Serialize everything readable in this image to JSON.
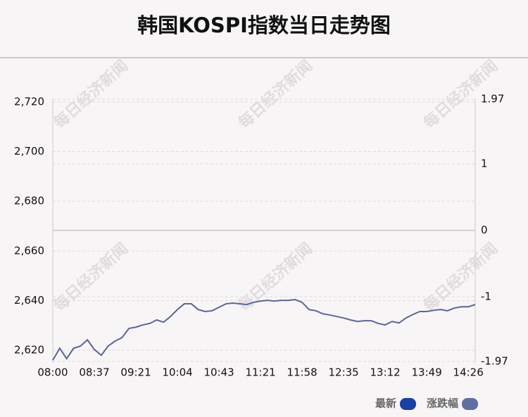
{
  "chart_data": {
    "type": "line",
    "title": "韩国KOSPI指数当日走势图",
    "watermark": "每日经济新闻",
    "categories": [
      "08:00",
      null,
      null,
      null,
      null,
      null,
      "08:37",
      null,
      null,
      null,
      null,
      null,
      "09:21",
      null,
      null,
      null,
      null,
      null,
      "10:04",
      null,
      null,
      null,
      null,
      null,
      "10:43",
      null,
      null,
      null,
      null,
      null,
      "11:21",
      null,
      null,
      null,
      null,
      null,
      "11:58",
      null,
      null,
      null,
      null,
      null,
      "12:35",
      null,
      null,
      null,
      null,
      null,
      "13:12",
      null,
      null,
      null,
      null,
      null,
      "13:49",
      null,
      null,
      null,
      null,
      null,
      "14:26",
      null
    ],
    "series": [
      {
        "color": "#56679a",
        "values": [
          2616.0,
          2620.8,
          2616.6,
          2620.8,
          2621.7,
          2624.2,
          2620.3,
          2618.0,
          2621.7,
          2623.7,
          2625.1,
          2628.8,
          2629.3,
          2630.2,
          2630.8,
          2632.2,
          2631.3,
          2633.6,
          2636.4,
          2638.7,
          2638.7,
          2636.4,
          2635.6,
          2635.9,
          2637.3,
          2638.7,
          2639.0,
          2638.7,
          2638.4,
          2639.3,
          2639.8,
          2640.1,
          2639.8,
          2640.1,
          2640.1,
          2640.4,
          2639.3,
          2636.4,
          2635.9,
          2634.7,
          2634.2,
          2633.6,
          2633.0,
          2632.2,
          2631.6,
          2631.9,
          2631.9,
          2630.8,
          2630.2,
          2631.6,
          2631.0,
          2633.0,
          2634.4,
          2635.6,
          2635.6,
          2636.1,
          2636.4,
          2635.9,
          2637.0,
          2637.5,
          2637.5,
          2638.4
        ]
      }
    ],
    "ylim": [
      2615.5,
      2721.1
    ],
    "yticks": [
      {
        "value": 2620,
        "label": "2,620"
      },
      {
        "value": 2640,
        "label": "2,640"
      },
      {
        "value": 2660,
        "label": "2,660"
      },
      {
        "value": 2680,
        "label": "2,680"
      },
      {
        "value": 2700,
        "label": "2,700"
      },
      {
        "value": 2720,
        "label": "2,720"
      }
    ],
    "y2lim": [
      -1.97,
      1.97
    ],
    "y2ticks": [
      -1.97,
      -1,
      0,
      1,
      1.97
    ],
    "y2_zero_line": true,
    "grid": true,
    "legend": [
      {
        "name": "最新",
        "color": "#1a3fa6"
      },
      {
        "name": "涨跌幅",
        "color": "#5d6fa3"
      }
    ]
  }
}
